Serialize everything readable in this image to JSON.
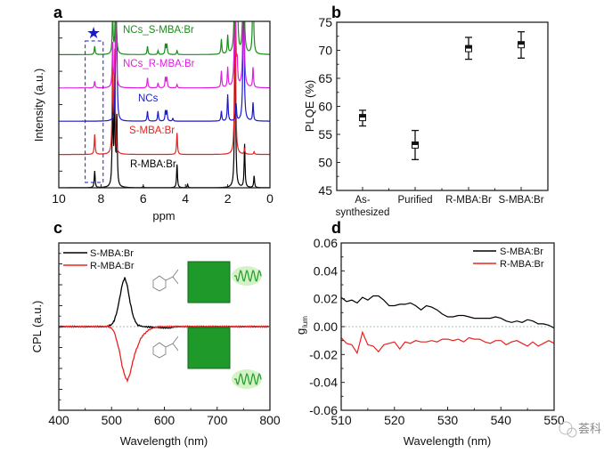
{
  "panel_labels": [
    "a",
    "b",
    "c",
    "d"
  ],
  "watermark": "荟科",
  "chart_data": [
    {
      "type": "line",
      "panel": "a",
      "xlabel": "ppm",
      "ylabel": "Intensity (a.u.)",
      "xlim": [
        10,
        0
      ],
      "xticks": [
        "10",
        "8",
        "6",
        "4",
        "2",
        "0"
      ],
      "ylim": [
        0,
        5
      ],
      "annotation": {
        "symbol": "★",
        "region_ppm": [
          8.75,
          7.9
        ],
        "color": "#1a1acc"
      },
      "series": [
        {
          "name": "R-MBA:Br",
          "color": "#000000",
          "offset": 0,
          "peaks": [
            [
              8.3,
              0.5
            ],
            [
              7.45,
              3
            ],
            [
              7.35,
              3
            ],
            [
              7.25,
              2
            ],
            [
              6.0,
              0.05
            ],
            [
              4.4,
              0.7
            ],
            [
              3.9,
              0.1
            ],
            [
              1.65,
              6
            ],
            [
              1.2,
              1.3
            ],
            [
              0.75,
              0.35
            ]
          ]
        },
        {
          "name": "S-MBA:Br",
          "color": "#e8231f",
          "offset": 1,
          "peaks": [
            [
              8.3,
              0.6
            ],
            [
              7.45,
              3
            ],
            [
              7.35,
              3
            ],
            [
              4.4,
              0.65
            ],
            [
              1.65,
              6
            ],
            [
              1.2,
              0.15
            ],
            [
              0.75,
              0.08
            ]
          ]
        },
        {
          "name": "NCs",
          "color": "#1a1acc",
          "offset": 2,
          "peaks": [
            [
              7.3,
              3
            ],
            [
              7.25,
              2
            ],
            [
              5.8,
              0.3
            ],
            [
              5.3,
              0.3
            ],
            [
              4.95,
              0.3
            ],
            [
              4.88,
              0.3
            ],
            [
              4.6,
              0.08
            ],
            [
              2.3,
              0.3
            ],
            [
              2.0,
              0.8
            ],
            [
              1.6,
              0.5
            ],
            [
              1.25,
              6
            ],
            [
              0.8,
              0.55
            ]
          ]
        },
        {
          "name": "NCs_R-MBA:Br",
          "color": "#e020e0",
          "offset": 3,
          "peaks": [
            [
              8.3,
              0.2
            ],
            [
              7.45,
              1.3
            ],
            [
              7.3,
              3
            ],
            [
              5.8,
              0.3
            ],
            [
              5.3,
              0.15
            ],
            [
              4.95,
              0.3
            ],
            [
              4.88,
              0.3
            ],
            [
              4.4,
              0.1
            ],
            [
              2.3,
              0.5
            ],
            [
              2.0,
              0.6
            ],
            [
              1.65,
              6
            ],
            [
              1.55,
              0.6
            ],
            [
              1.25,
              6
            ],
            [
              0.8,
              0.6
            ]
          ]
        },
        {
          "name": "NCs_S-MBA:Br",
          "color": "#1a8c1a",
          "offset": 4,
          "peaks": [
            [
              8.3,
              0.25
            ],
            [
              7.45,
              1.2
            ],
            [
              7.3,
              3
            ],
            [
              5.8,
              0.25
            ],
            [
              5.3,
              0.12
            ],
            [
              4.95,
              0.3
            ],
            [
              4.88,
              0.3
            ],
            [
              4.4,
              0.12
            ],
            [
              2.3,
              0.45
            ],
            [
              2.0,
              0.55
            ],
            [
              1.65,
              6
            ],
            [
              1.55,
              3
            ],
            [
              1.25,
              6
            ],
            [
              0.8,
              3
            ]
          ]
        }
      ]
    },
    {
      "type": "scatter",
      "panel": "b",
      "ylabel": "PLQE (%)",
      "ylim": [
        45,
        75
      ],
      "yticks": [
        "45",
        "50",
        "55",
        "60",
        "65",
        "70",
        "75"
      ],
      "categories": [
        [
          "As-",
          "synthesized"
        ],
        [
          "Purified"
        ],
        [
          "R-MBA:Br"
        ],
        [
          "S-MBA:Br"
        ]
      ],
      "values": [
        58.0,
        53.1,
        70.3,
        71.0
      ],
      "error_low": [
        56.5,
        50.5,
        68.4,
        68.6
      ],
      "error_high": [
        59.3,
        55.7,
        72.3,
        73.3
      ]
    },
    {
      "type": "line",
      "panel": "c",
      "xlabel": "Wavelength (nm)",
      "ylabel": "CPL (a.u.)",
      "xlim": [
        400,
        800
      ],
      "xticks": [
        "400",
        "500",
        "600",
        "700",
        "800"
      ],
      "ylim": [
        -1.7,
        1.7
      ],
      "legend": "top-left",
      "series": [
        {
          "name": "S-MBA:Br",
          "color": "#000000",
          "points": [
            [
              400,
              0
            ],
            [
              490,
              0
            ],
            [
              500,
              0.04
            ],
            [
              505,
              0.12
            ],
            [
              510,
              0.3
            ],
            [
              515,
              0.55
            ],
            [
              520,
              0.85
            ],
            [
              525,
              1.0
            ],
            [
              530,
              0.82
            ],
            [
              535,
              0.5
            ],
            [
              540,
              0.25
            ],
            [
              545,
              0.1
            ],
            [
              550,
              0.03
            ],
            [
              560,
              0
            ],
            [
              610,
              -0.03
            ],
            [
              620,
              0
            ],
            [
              800,
              0
            ]
          ]
        },
        {
          "name": "R-MBA:Br",
          "color": "#e8231f",
          "points": [
            [
              400,
              0
            ],
            [
              495,
              0
            ],
            [
              500,
              -0.04
            ],
            [
              505,
              -0.1
            ],
            [
              510,
              -0.3
            ],
            [
              515,
              -0.5
            ],
            [
              520,
              -0.8
            ],
            [
              525,
              -1.0
            ],
            [
              530,
              -1.1
            ],
            [
              535,
              -0.95
            ],
            [
              540,
              -0.72
            ],
            [
              545,
              -0.52
            ],
            [
              550,
              -0.38
            ],
            [
              555,
              -0.25
            ],
            [
              560,
              -0.17
            ],
            [
              570,
              -0.07
            ],
            [
              580,
              -0.02
            ],
            [
              590,
              0
            ],
            [
              800,
              0
            ]
          ]
        }
      ]
    },
    {
      "type": "line",
      "panel": "d",
      "xlabel": "Wavelength (nm)",
      "ylabel": "g",
      "ylabel_sub": "lum",
      "xlim": [
        510,
        550
      ],
      "xticks": [
        "510",
        "520",
        "530",
        "540",
        "550"
      ],
      "ylim": [
        -0.06,
        0.06
      ],
      "yticks": [
        "-0.06",
        "-0.04",
        "-0.02",
        "0.00",
        "0.02",
        "0.04",
        "0.06"
      ],
      "legend": "top-right",
      "x": [
        510,
        511,
        512,
        513,
        514,
        515,
        516,
        517,
        518,
        519,
        520,
        521,
        522,
        523,
        524,
        525,
        526,
        527,
        528,
        529,
        530,
        531,
        532,
        533,
        534,
        535,
        536,
        537,
        538,
        539,
        540,
        541,
        542,
        543,
        544,
        545,
        546,
        547,
        548,
        549,
        550
      ],
      "series": [
        {
          "name": "S-MBA:Br",
          "color": "#000000",
          "values": [
            0.021,
            0.018,
            0.019,
            0.017,
            0.021,
            0.019,
            0.022,
            0.022,
            0.019,
            0.015,
            0.015,
            0.016,
            0.016,
            0.017,
            0.015,
            0.012,
            0.015,
            0.014,
            0.012,
            0.009,
            0.007,
            0.007,
            0.008,
            0.008,
            0.007,
            0.006,
            0.006,
            0.006,
            0.006,
            0.007,
            0.006,
            0.004,
            0.003,
            0.004,
            0.003,
            0.005,
            0.004,
            0.002,
            0.002,
            0.001,
            -0.001
          ]
        },
        {
          "name": "R-MBA:Br",
          "color": "#e8231f",
          "values": [
            -0.008,
            -0.012,
            -0.013,
            -0.019,
            -0.004,
            -0.013,
            -0.014,
            -0.018,
            -0.013,
            -0.012,
            -0.011,
            -0.016,
            -0.011,
            -0.012,
            -0.01,
            -0.011,
            -0.011,
            -0.01,
            -0.011,
            -0.009,
            -0.009,
            -0.01,
            -0.009,
            -0.011,
            -0.008,
            -0.009,
            -0.009,
            -0.011,
            -0.012,
            -0.01,
            -0.01,
            -0.013,
            -0.011,
            -0.01,
            -0.012,
            -0.014,
            -0.011,
            -0.014,
            -0.012,
            -0.01,
            -0.012
          ]
        }
      ]
    }
  ]
}
